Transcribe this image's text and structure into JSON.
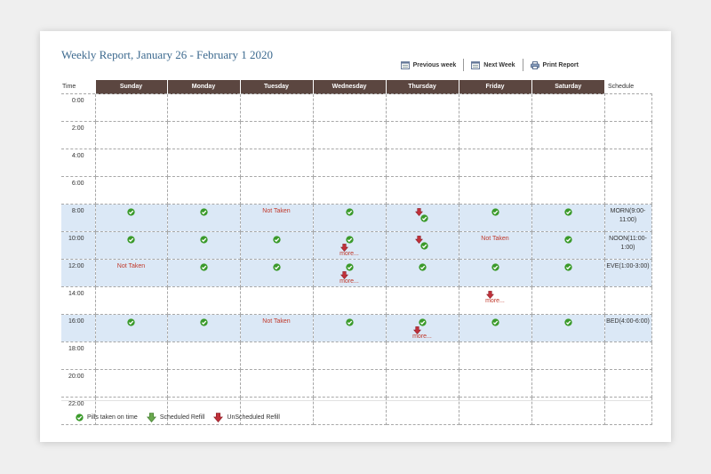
{
  "title": "Weekly Report, January 26 - February 1 2020",
  "toolbar": {
    "prev": "Previous week",
    "next": "Next Week",
    "print": "Print Report"
  },
  "headers": {
    "time": "Time",
    "days": [
      "Sunday",
      "Monday",
      "Tuesday",
      "Wednesday",
      "Thursday",
      "Friday",
      "Saturday"
    ],
    "schedule": "Schedule"
  },
  "labels": {
    "not_taken": "Not Taken",
    "more": "more..."
  },
  "rows": [
    {
      "time": "0:00",
      "band": false,
      "cells": [
        "",
        "",
        "",
        "",
        "",
        "",
        ""
      ],
      "schedule": ""
    },
    {
      "time": "2:00",
      "band": false,
      "cells": [
        "",
        "",
        "",
        "",
        "",
        "",
        ""
      ],
      "schedule": ""
    },
    {
      "time": "4:00",
      "band": false,
      "cells": [
        "",
        "",
        "",
        "",
        "",
        "",
        ""
      ],
      "schedule": ""
    },
    {
      "time": "6:00",
      "band": false,
      "cells": [
        "",
        "",
        "",
        "",
        "",
        "",
        ""
      ],
      "schedule": ""
    },
    {
      "time": "8:00",
      "band": true,
      "cells": [
        "check",
        "check",
        "not_taken",
        "check",
        "unsched_check",
        "check",
        "check"
      ],
      "schedule": "MORN(9:00-11:00)"
    },
    {
      "time": "10:00",
      "band": true,
      "cells": [
        "check",
        "check",
        "check",
        "check_unsched_more",
        "unsched_check",
        "not_taken",
        "check"
      ],
      "schedule": "NOON(11:00-1:00)"
    },
    {
      "time": "12:00",
      "band": true,
      "cells": [
        "not_taken",
        "check",
        "check",
        "check_unsched_more",
        "check",
        "check",
        "check"
      ],
      "schedule": "EVE(1:00-3:00)"
    },
    {
      "time": "14:00",
      "band": false,
      "cells": [
        "",
        "",
        "",
        "",
        "",
        "unsched_more",
        ""
      ],
      "schedule": ""
    },
    {
      "time": "16:00",
      "band": true,
      "cells": [
        "check",
        "check",
        "not_taken",
        "check",
        "check_unsched_more",
        "check",
        "check"
      ],
      "schedule": "BED(4:00-6:00)"
    },
    {
      "time": "18:00",
      "band": false,
      "cells": [
        "",
        "",
        "",
        "",
        "",
        "",
        ""
      ],
      "schedule": ""
    },
    {
      "time": "20:00",
      "band": false,
      "cells": [
        "",
        "",
        "",
        "",
        "",
        "",
        ""
      ],
      "schedule": ""
    },
    {
      "time": "22:00",
      "band": false,
      "cells": [
        "",
        "",
        "",
        "",
        "",
        "",
        ""
      ],
      "schedule": ""
    }
  ],
  "legend": {
    "taken": "Pills taken on time",
    "scheduled": "Scheduled Refill",
    "unscheduled": "UnScheduled Refill"
  },
  "colors": {
    "header_bg": "#5b4640",
    "band_bg": "#dbe8f6",
    "title": "#3d6a8f",
    "not_taken": "#c0392b",
    "check": "#3a9a2a",
    "scheduled_refill": "#6aa84f",
    "unscheduled_refill": "#c0303a"
  }
}
